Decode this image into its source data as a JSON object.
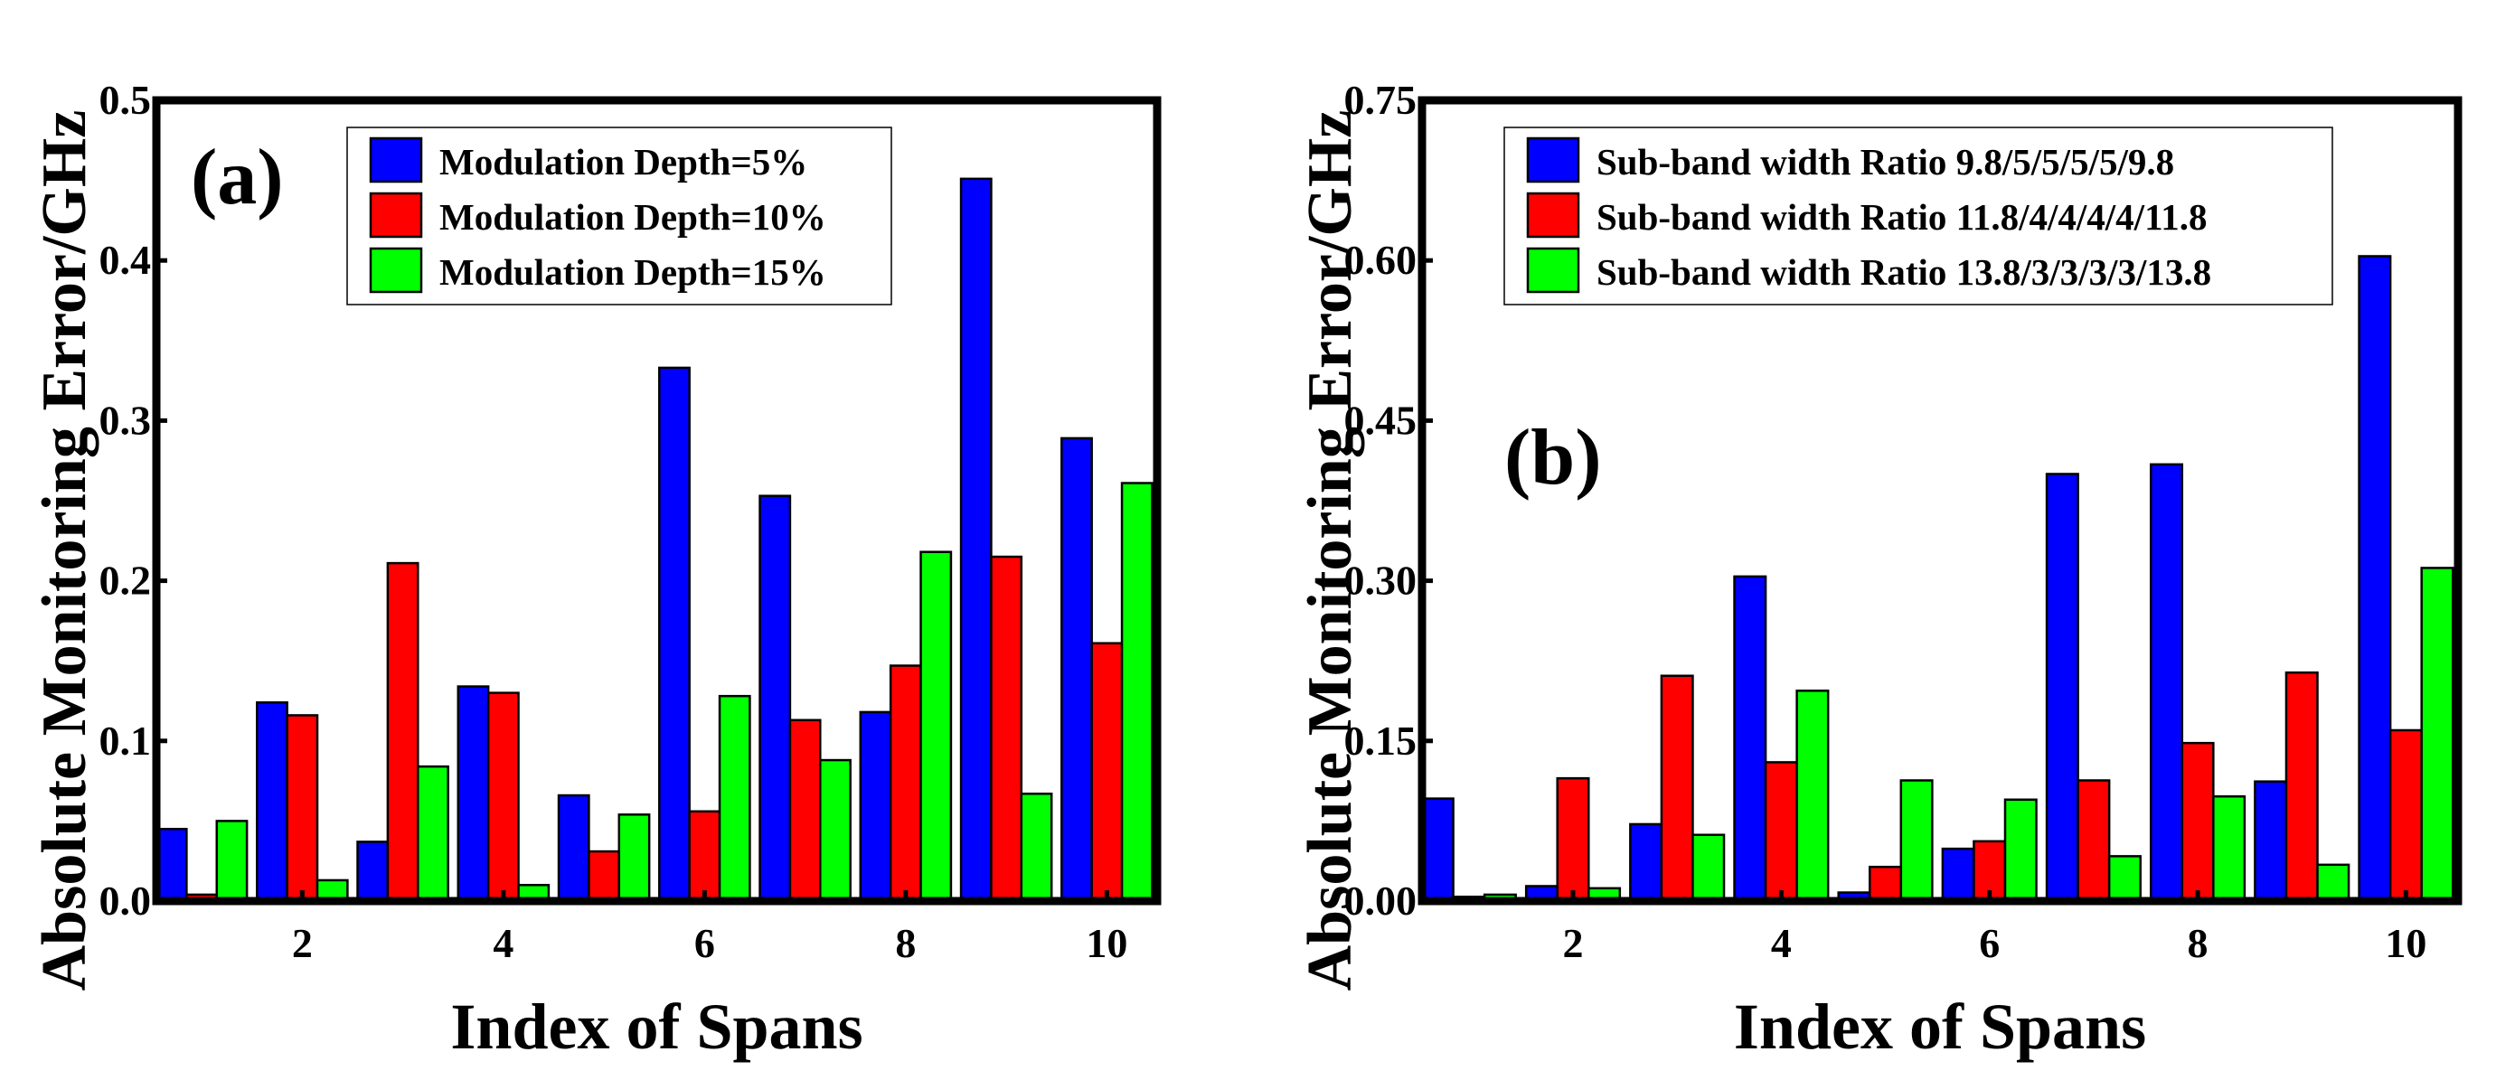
{
  "chart_data": [
    {
      "type": "bar",
      "panel_label": "(a)",
      "xlabel": "Index of Spans",
      "ylabel": "Absolute Monitoring Error/GHz",
      "x": [
        1,
        2,
        3,
        4,
        5,
        6,
        7,
        8,
        9,
        10
      ],
      "xticks": [
        "2",
        "4",
        "6",
        "8",
        "10"
      ],
      "xtick_values": [
        2,
        4,
        6,
        8,
        10
      ],
      "xlim": [
        0.55,
        10.5
      ],
      "ylim": [
        0,
        0.5
      ],
      "yticks": [
        "0.0",
        "0.1",
        "0.2",
        "0.3",
        "0.4",
        "0.5"
      ],
      "ytick_values": [
        0,
        0.1,
        0.2,
        0.3,
        0.4,
        0.5
      ],
      "legend_position": "top-center",
      "series": [
        {
          "name": "Modulation Depth=5%",
          "color": "#0000ff",
          "values": [
            0.045,
            0.124,
            0.037,
            0.134,
            0.066,
            0.333,
            0.253,
            0.118,
            0.451,
            0.289
          ]
        },
        {
          "name": "Modulation Depth=10%",
          "color": "#ff0000",
          "values": [
            0.004,
            0.116,
            0.211,
            0.13,
            0.031,
            0.056,
            0.113,
            0.147,
            0.215,
            0.161
          ]
        },
        {
          "name": "Modulation Depth=15%",
          "color": "#00ff00",
          "values": [
            0.05,
            0.013,
            0.084,
            0.01,
            0.054,
            0.128,
            0.088,
            0.218,
            0.067,
            0.261
          ]
        }
      ]
    },
    {
      "type": "bar",
      "panel_label": "(b)",
      "xlabel": "Index of Spans",
      "ylabel": "Absolute Monitoring Error/GHz",
      "x": [
        1,
        2,
        3,
        4,
        5,
        6,
        7,
        8,
        9,
        10
      ],
      "xticks": [
        "2",
        "4",
        "6",
        "8",
        "10"
      ],
      "xtick_values": [
        2,
        4,
        6,
        8,
        10
      ],
      "xlim": [
        0.55,
        10.5
      ],
      "ylim": [
        0,
        0.75
      ],
      "yticks": [
        "0.00",
        "0.15",
        "0.30",
        "0.45",
        "0.60",
        "0.75"
      ],
      "ytick_values": [
        0,
        0.15,
        0.3,
        0.45,
        0.6,
        0.75
      ],
      "legend_position": "top-left",
      "series": [
        {
          "name": "Sub-band width Ratio 9.8/5/5/5/5/9.8",
          "color": "#0000ff",
          "values": [
            0.096,
            0.014,
            0.072,
            0.304,
            0.008,
            0.049,
            0.4,
            0.409,
            0.112,
            0.604
          ]
        },
        {
          "name": "Sub-band width Ratio 11.8/4/4/4/4/11.8",
          "color": "#ff0000",
          "values": [
            0.004,
            0.115,
            0.211,
            0.13,
            0.032,
            0.056,
            0.113,
            0.148,
            0.214,
            0.16
          ]
        },
        {
          "name": "Sub-band width Ratio 13.8/3/3/3/3/13.8",
          "color": "#00ff00",
          "values": [
            0.006,
            0.012,
            0.062,
            0.197,
            0.113,
            0.095,
            0.042,
            0.098,
            0.034,
            0.312
          ]
        }
      ]
    }
  ]
}
